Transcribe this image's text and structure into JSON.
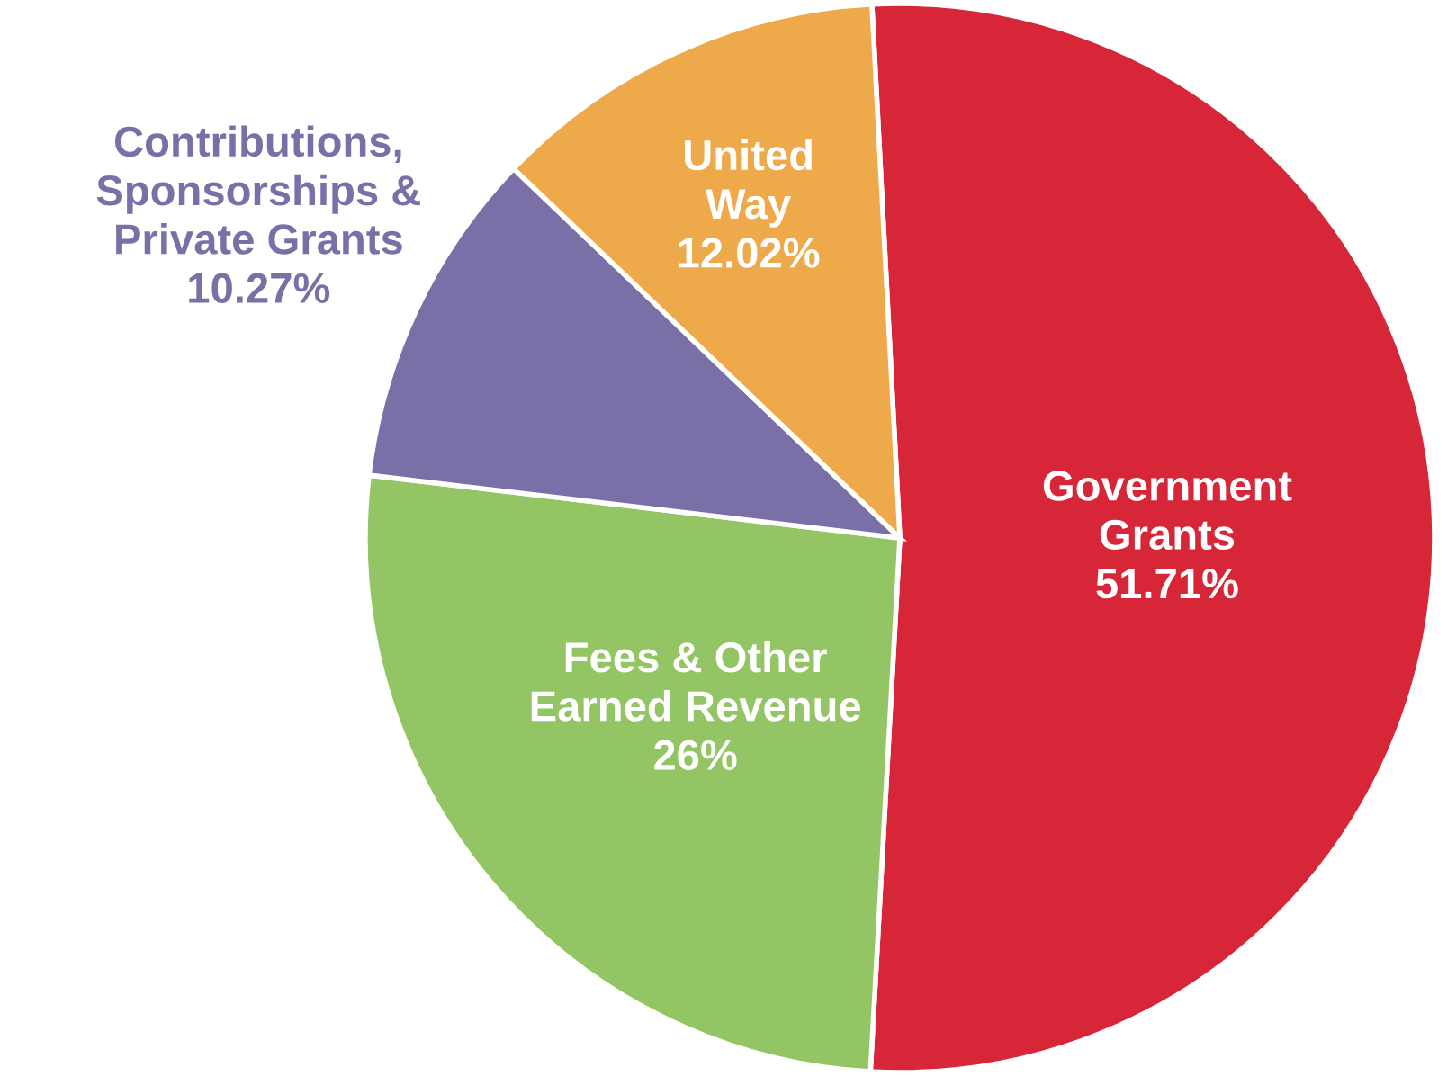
{
  "chart_data": {
    "type": "pie",
    "categories": [
      "Government\nGrants",
      "Fees & Other\nEarned Revenue",
      "Contributions,\nSponsorships &\nPrivate Grants",
      "United\nWay"
    ],
    "values": [
      51.71,
      26,
      10.27,
      12.02
    ],
    "value_labels": [
      "51.71%",
      "26%",
      "10.27%",
      "12.02%"
    ],
    "colors": [
      "#d62638",
      "#93c565",
      "#7a6fa6",
      "#eeaa4a"
    ],
    "legend": false
  }
}
